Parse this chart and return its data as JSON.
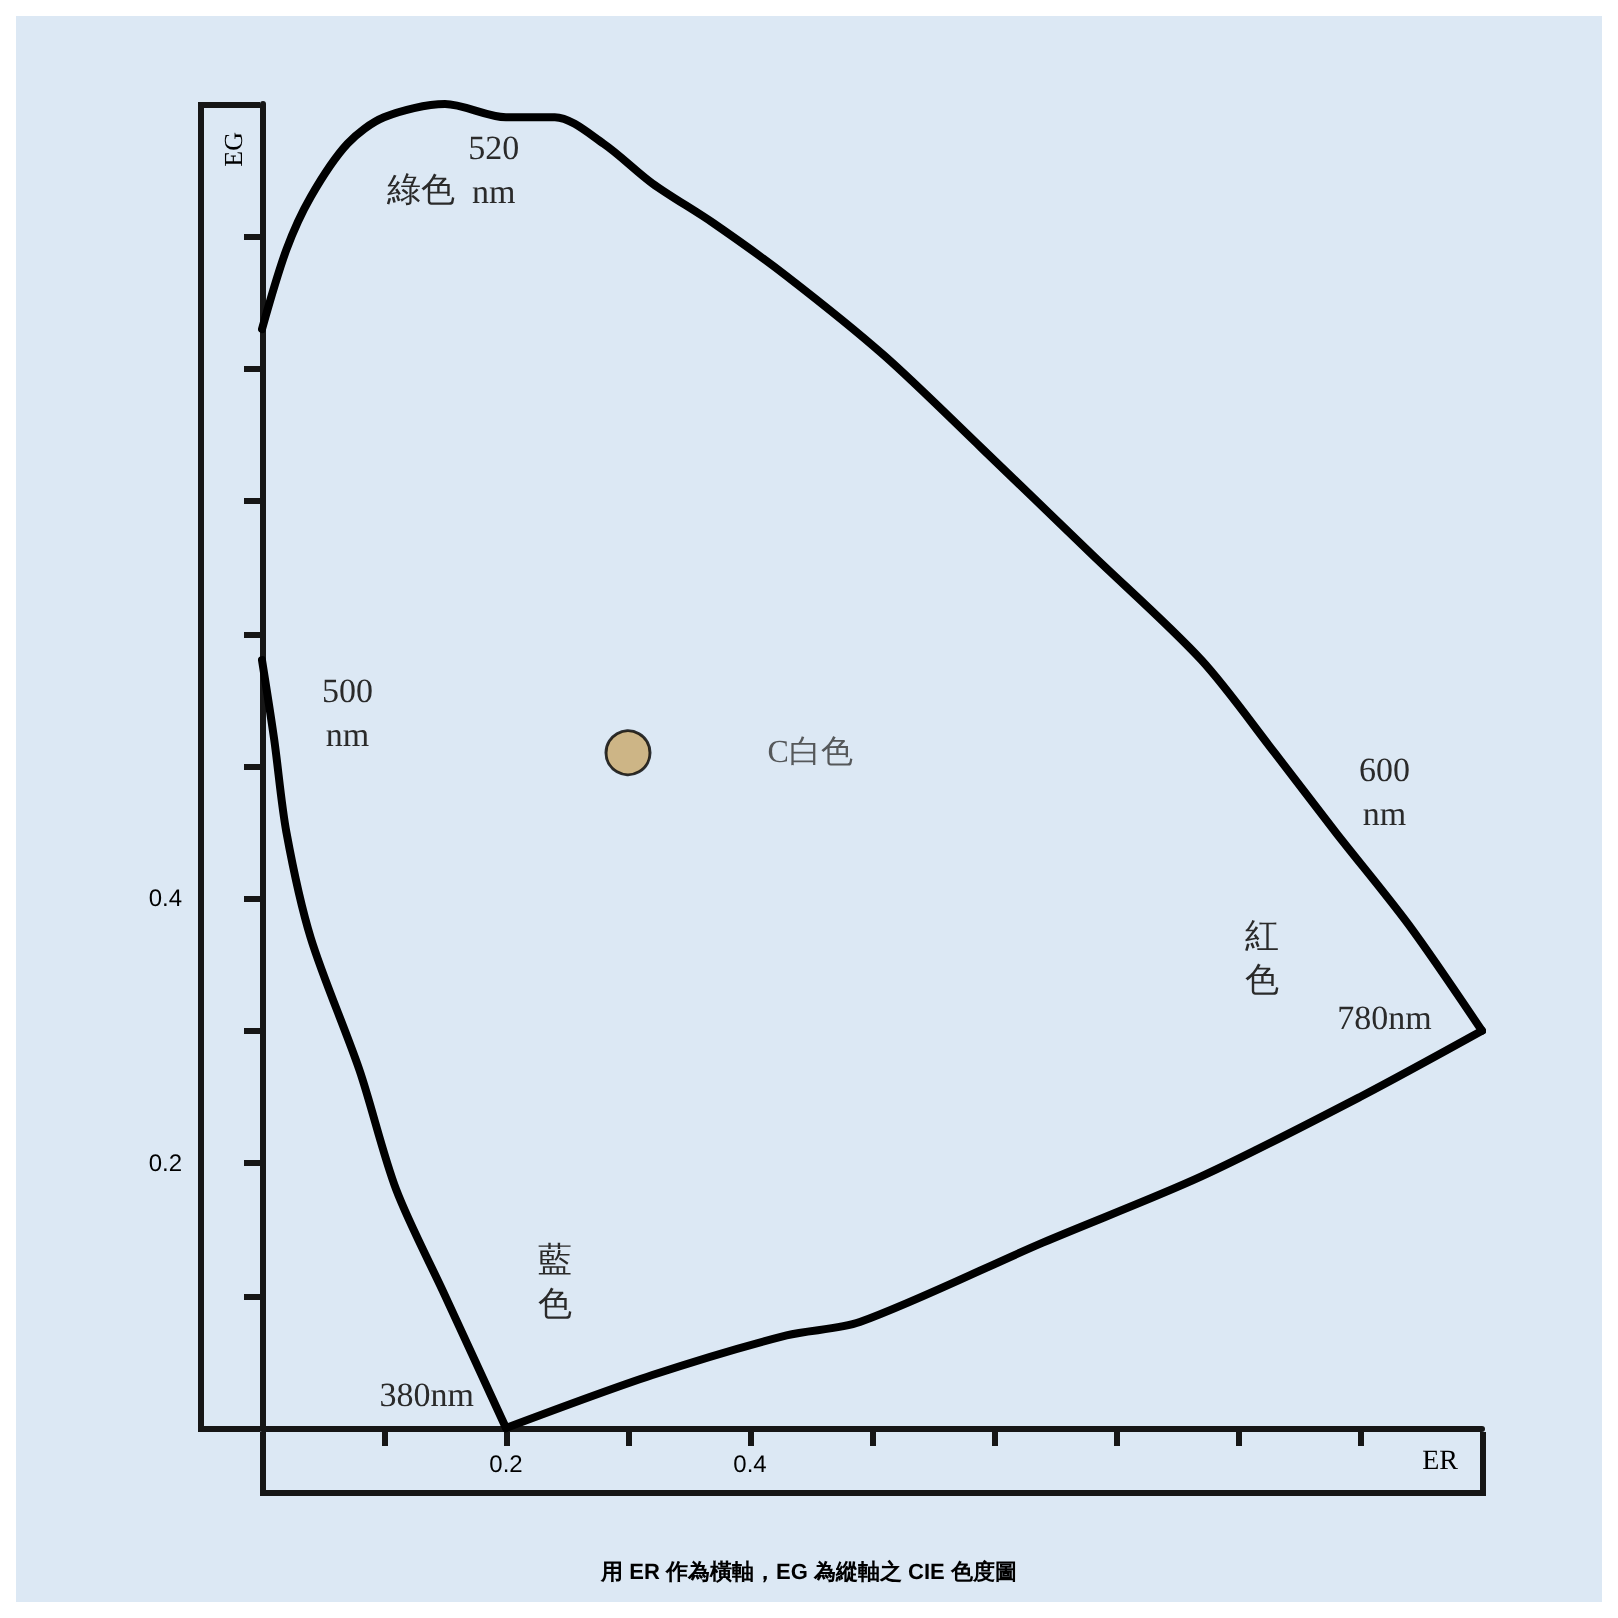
{
  "chart_data": {
    "type": "line",
    "title": "用 ER 作為橫軸，EG 為縱軸之 CIE 色度圖",
    "xlabel": "ER",
    "ylabel": "EG",
    "series": [
      {
        "color": "#000000",
        "x": [
          0.0,
          0.01,
          0.02,
          0.04,
          0.08,
          0.11,
          0.15,
          0.2
        ],
        "values": [
          0.58,
          0.52,
          0.45,
          0.37,
          0.27,
          0.18,
          0.1,
          0.0
        ]
      },
      {
        "color": "#000000",
        "x": [
          0.0,
          0.02,
          0.04,
          0.07,
          0.1,
          0.15,
          0.2,
          0.24,
          0.28,
          0.32,
          0.37,
          0.43,
          0.51,
          0.59,
          0.68,
          0.77,
          0.83,
          0.88,
          0.94,
          1.0
        ],
        "values": [
          0.83,
          0.89,
          0.93,
          0.97,
          0.99,
          1.0,
          0.99,
          0.99,
          0.97,
          0.94,
          0.91,
          0.87,
          0.81,
          0.74,
          0.66,
          0.58,
          0.51,
          0.45,
          0.38,
          0.3
        ]
      },
      {
        "color": "#000000",
        "x": [
          0.2,
          0.32,
          0.43,
          0.49,
          0.64,
          0.77,
          0.9,
          1.0
        ],
        "values": [
          0.0,
          0.04,
          0.07,
          0.08,
          0.14,
          0.19,
          0.25,
          0.3
        ]
      },
      {
        "type": "scatter",
        "name": "C白色",
        "color": "#c9a86a",
        "marker": "circle",
        "x": [
          0.3
        ],
        "values": [
          0.51
        ]
      }
    ],
    "xlim": [
      0,
      1
    ],
    "ylim": [
      0,
      1
    ],
    "xticks": [
      {
        "value": 0.1,
        "label": null
      },
      0.2,
      {
        "value": 0.3,
        "label": null
      },
      0.4,
      {
        "value": 0.5,
        "label": null
      },
      {
        "value": 0.6,
        "label": null
      },
      {
        "value": 0.7,
        "label": null
      },
      {
        "value": 0.8,
        "label": null
      },
      {
        "value": 0.9,
        "label": null
      }
    ],
    "yticks": [
      {
        "value": 0.1,
        "label": null
      },
      0.2,
      {
        "value": 0.3,
        "label": null
      },
      0.4,
      {
        "value": 0.5,
        "label": null
      },
      {
        "value": 0.6,
        "label": null
      },
      {
        "value": 0.7,
        "label": null
      },
      {
        "value": 0.8,
        "label": null
      },
      {
        "value": 0.9,
        "label": null
      }
    ],
    "annotations": [
      "520\nnm",
      "綠色",
      "500\nnm",
      "600\nnm",
      "紅色",
      "780nm",
      "藍色",
      "380nm"
    ],
    "grid": false,
    "legend": false,
    "marker": "none",
    "line_style": "solid"
  }
}
